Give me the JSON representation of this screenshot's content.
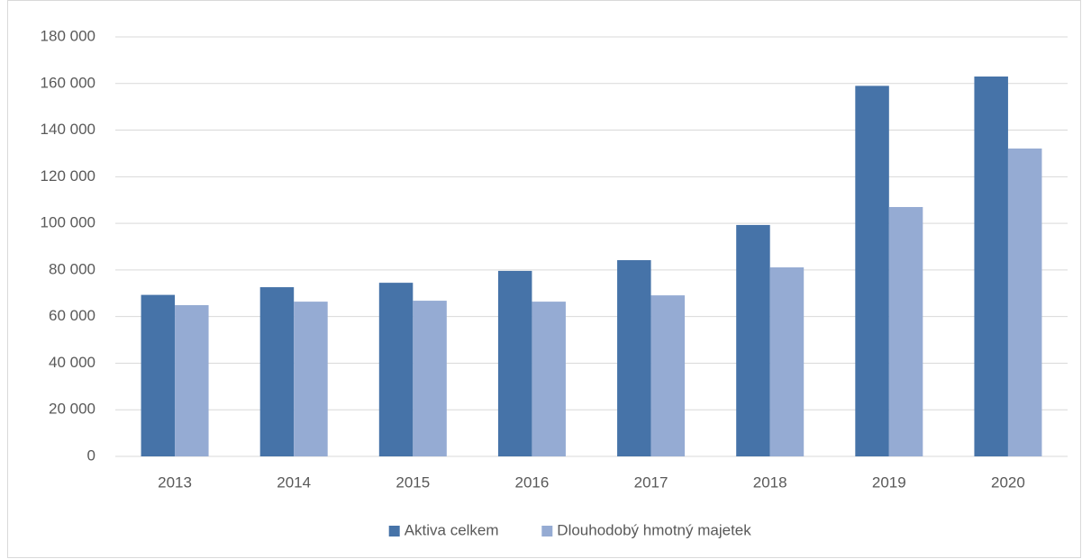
{
  "chart_data": {
    "type": "bar",
    "categories": [
      "2013",
      "2014",
      "2015",
      "2016",
      "2017",
      "2018",
      "2019",
      "2020"
    ],
    "series": [
      {
        "name": "Aktiva celkem",
        "color": "#4673a8",
        "values": [
          69300,
          72600,
          74500,
          79600,
          84200,
          99300,
          159000,
          163000
        ]
      },
      {
        "name": "Dlouhodobý hmotný majetek",
        "color": "#95abd3",
        "values": [
          64900,
          66400,
          66800,
          66400,
          69100,
          81100,
          107000,
          132100
        ]
      }
    ],
    "ylim": [
      0,
      180000
    ],
    "yticks": [
      0,
      {
        "value": 20000,
        "label": "20 000"
      },
      {
        "value": 40000,
        "label": "40 000"
      },
      {
        "value": 60000,
        "label": "60 000"
      },
      {
        "value": 80000,
        "label": "80 000"
      },
      {
        "value": 100000,
        "label": "100 000"
      },
      {
        "value": 120000,
        "label": "120 000"
      },
      {
        "value": 140000,
        "label": "140 000"
      },
      {
        "value": 160000,
        "label": "160 000"
      },
      {
        "value": 180000,
        "label": "180 000"
      }
    ],
    "grid": true,
    "legend": "bottom"
  }
}
